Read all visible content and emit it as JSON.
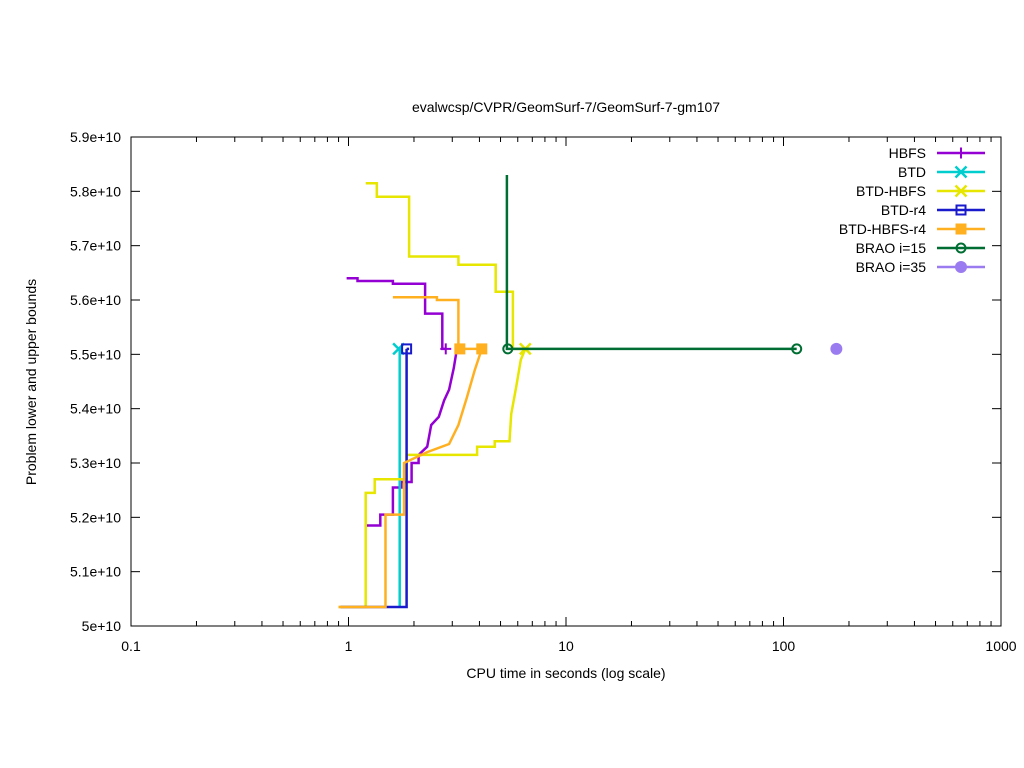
{
  "chart_data": {
    "type": "line",
    "title": "evalwcsp/CVPR/GeomSurf-7/GeomSurf-7-gm107",
    "xlabel": "CPU time in seconds (log scale)",
    "ylabel": "Problem lower and upper bounds",
    "xscale": "log",
    "xlim": [
      0.1,
      1000
    ],
    "ylim": [
      50000000000,
      59000000000
    ],
    "x_ticks": [
      {
        "value": 0.1,
        "label": "0.1"
      },
      {
        "value": 1,
        "label": "1"
      },
      {
        "value": 10,
        "label": "10"
      },
      {
        "value": 100,
        "label": "100"
      },
      {
        "value": 1000,
        "label": "1000"
      }
    ],
    "y_ticks": [
      {
        "value": 50000000000,
        "label": "5e+10"
      },
      {
        "value": 51000000000,
        "label": "5.1e+10"
      },
      {
        "value": 52000000000,
        "label": "5.2e+10"
      },
      {
        "value": 53000000000,
        "label": "5.3e+10"
      },
      {
        "value": 54000000000,
        "label": "5.4e+10"
      },
      {
        "value": 55000000000,
        "label": "5.5e+10"
      },
      {
        "value": 56000000000,
        "label": "5.6e+10"
      },
      {
        "value": 57000000000,
        "label": "5.7e+10"
      },
      {
        "value": 58000000000,
        "label": "5.8e+10"
      },
      {
        "value": 59000000000,
        "label": "5.9e+10"
      }
    ],
    "grid": false,
    "legend_position": "top-right",
    "series": [
      {
        "name": "HBFS",
        "color": "#9400d3",
        "marker": "plus",
        "upper": [
          [
            0.98,
            56400000000
          ],
          [
            1.1,
            56400000000
          ],
          [
            1.1,
            56350000000
          ],
          [
            1.6,
            56350000000
          ],
          [
            1.6,
            56300000000
          ],
          [
            2.25,
            56300000000
          ],
          [
            2.25,
            55750000000
          ],
          [
            2.7,
            55750000000
          ],
          [
            2.7,
            55100000000
          ],
          [
            2.8,
            55100000000
          ]
        ],
        "lower": [
          [
            1.2,
            51850000000
          ],
          [
            1.4,
            51850000000
          ],
          [
            1.4,
            52050000000
          ],
          [
            1.6,
            52050000000
          ],
          [
            1.6,
            52550000000
          ],
          [
            1.75,
            52550000000
          ],
          [
            1.75,
            52650000000
          ],
          [
            1.95,
            52650000000
          ],
          [
            1.95,
            53000000000
          ],
          [
            2.1,
            53000000000
          ],
          [
            2.1,
            53150000000
          ],
          [
            2.3,
            53300000000
          ],
          [
            2.4,
            53700000000
          ],
          [
            2.6,
            53850000000
          ],
          [
            2.75,
            54150000000
          ],
          [
            2.9,
            54350000000
          ],
          [
            3.05,
            54750000000
          ],
          [
            3.15,
            55100000000
          ]
        ],
        "points": [
          [
            2.8,
            55100000000
          ]
        ]
      },
      {
        "name": "BTD",
        "color": "#00cdcd",
        "marker": "cross",
        "upper": [
          [
            1.7,
            55100000000
          ],
          [
            1.75,
            55100000000
          ]
        ],
        "lower": [
          [
            1.72,
            50350000000
          ],
          [
            1.72,
            55100000000
          ]
        ],
        "points": [
          [
            1.7,
            55100000000
          ]
        ]
      },
      {
        "name": "BTD-HBFS",
        "color": "#e6e600",
        "marker": "x",
        "upper": [
          [
            1.2,
            58150000000
          ],
          [
            1.35,
            58150000000
          ],
          [
            1.35,
            57900000000
          ],
          [
            1.9,
            57900000000
          ],
          [
            1.9,
            56800000000
          ],
          [
            3.2,
            56800000000
          ],
          [
            3.2,
            56650000000
          ],
          [
            4.75,
            56650000000
          ],
          [
            4.75,
            56150000000
          ],
          [
            5.7,
            56150000000
          ],
          [
            5.7,
            55100000000
          ],
          [
            6.5,
            55100000000
          ]
        ],
        "lower": [
          [
            0.9,
            50350000000
          ],
          [
            1.2,
            50350000000
          ],
          [
            1.2,
            52450000000
          ],
          [
            1.32,
            52450000000
          ],
          [
            1.32,
            52700000000
          ],
          [
            1.85,
            52700000000
          ],
          [
            1.85,
            53150000000
          ],
          [
            3.9,
            53150000000
          ],
          [
            3.9,
            53300000000
          ],
          [
            4.7,
            53300000000
          ],
          [
            4.7,
            53400000000
          ],
          [
            5.5,
            53400000000
          ],
          [
            5.6,
            53900000000
          ],
          [
            5.9,
            54400000000
          ],
          [
            6.2,
            54900000000
          ],
          [
            6.5,
            55100000000
          ]
        ],
        "points": [
          [
            6.5,
            55100000000
          ]
        ]
      },
      {
        "name": "BTD-r4",
        "color": "#1a1acd",
        "marker": "square-open",
        "upper": [
          [
            1.85,
            55100000000
          ],
          [
            1.9,
            55100000000
          ]
        ],
        "lower": [
          [
            0.92,
            50350000000
          ],
          [
            1.85,
            50350000000
          ],
          [
            1.85,
            55100000000
          ]
        ],
        "points": [
          [
            1.85,
            55100000000
          ]
        ]
      },
      {
        "name": "BTD-HBFS-r4",
        "color": "#ffb020",
        "marker": "square-filled",
        "upper": [
          [
            1.6,
            56050000000
          ],
          [
            2.55,
            56050000000
          ],
          [
            2.55,
            56000000000
          ],
          [
            3.2,
            56000000000
          ],
          [
            3.2,
            55100000000
          ],
          [
            4.1,
            55100000000
          ]
        ],
        "lower": [
          [
            0.9,
            50350000000
          ],
          [
            1.48,
            50350000000
          ],
          [
            1.48,
            52050000000
          ],
          [
            1.8,
            52050000000
          ],
          [
            1.8,
            53000000000
          ],
          [
            2.3,
            53200000000
          ],
          [
            2.9,
            53350000000
          ],
          [
            3.2,
            53700000000
          ],
          [
            3.5,
            54200000000
          ],
          [
            3.8,
            54700000000
          ],
          [
            4.1,
            55100000000
          ]
        ],
        "points": [
          [
            3.25,
            55100000000
          ],
          [
            4.1,
            55100000000
          ]
        ]
      },
      {
        "name": "BRAO i=15",
        "color": "#006e33",
        "marker": "circle-open",
        "upper": [
          [
            5.35,
            58300000000
          ],
          [
            5.35,
            55100000000
          ],
          [
            115,
            55100000000
          ]
        ],
        "lower": [],
        "points": [
          [
            5.4,
            55100000000
          ],
          [
            115,
            55100000000
          ]
        ]
      },
      {
        "name": "BRAO i=35",
        "color": "#9a7cf0",
        "marker": "circle-filled",
        "upper": [],
        "lower": [],
        "points": [
          [
            175,
            55100000000
          ]
        ]
      }
    ]
  }
}
